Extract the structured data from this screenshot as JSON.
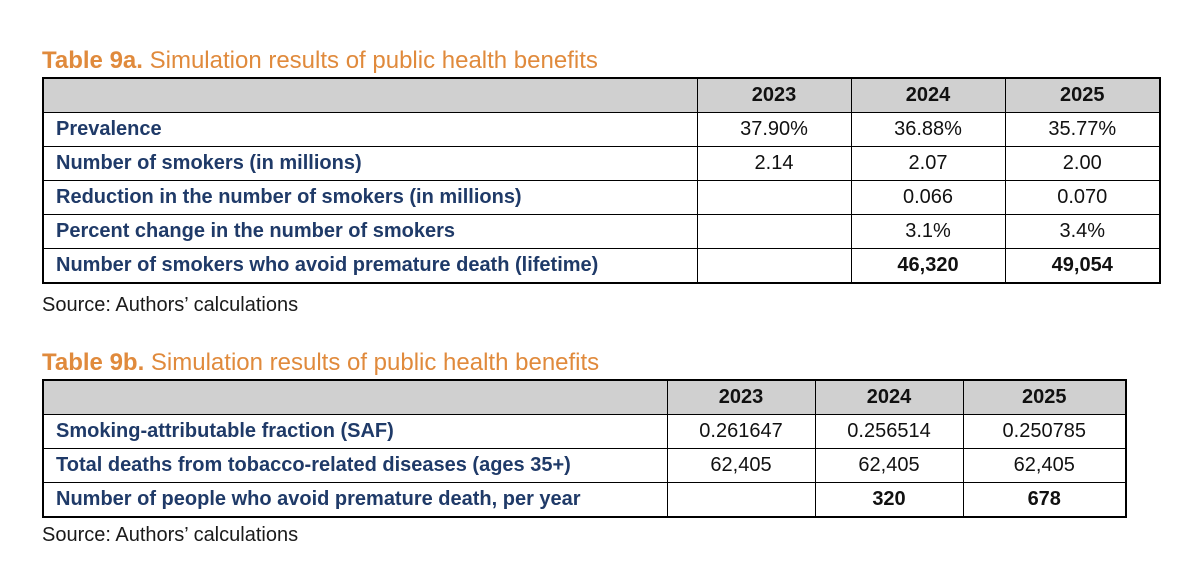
{
  "table_a": {
    "title_lead": "Table 9a.",
    "title_rest": "Simulation results of public health benefits",
    "years": [
      "2023",
      "2024",
      "2025"
    ],
    "rows": [
      {
        "label": "Prevalence",
        "values": [
          "37.90%",
          "36.88%",
          "35.77%"
        ],
        "bold": false
      },
      {
        "label": "Number of smokers (in millions)",
        "values": [
          "2.14",
          "2.07",
          "2.00"
        ],
        "bold": false
      },
      {
        "label": "Reduction in the number of smokers (in millions)",
        "values": [
          "",
          "0.066",
          "0.070"
        ],
        "bold": false
      },
      {
        "label": "Percent change in the number of smokers",
        "values": [
          "",
          "3.1%",
          "3.4%"
        ],
        "bold": false
      },
      {
        "label": "Number of smokers who avoid premature death (lifetime)",
        "values": [
          "",
          "46,320",
          "49,054"
        ],
        "bold": true
      }
    ],
    "source": "Source: Authors’ calculations"
  },
  "table_b": {
    "title_lead": "Table 9b.",
    "title_rest": "Simulation results of public health benefits",
    "years": [
      "2023",
      "2024",
      "2025"
    ],
    "rows": [
      {
        "label": "Smoking-attributable fraction (SAF)",
        "values": [
          "0.261647",
          "0.256514",
          "0.250785"
        ],
        "bold": false
      },
      {
        "label": "Total deaths from tobacco-related diseases (ages 35+)",
        "values": [
          "62,405",
          "62,405",
          "62,405"
        ],
        "bold": false
      },
      {
        "label": "Number of people who avoid premature death, per year",
        "values": [
          "",
          "320",
          "678"
        ],
        "bold": true
      }
    ],
    "source": "Source: Authors’ calculations"
  }
}
